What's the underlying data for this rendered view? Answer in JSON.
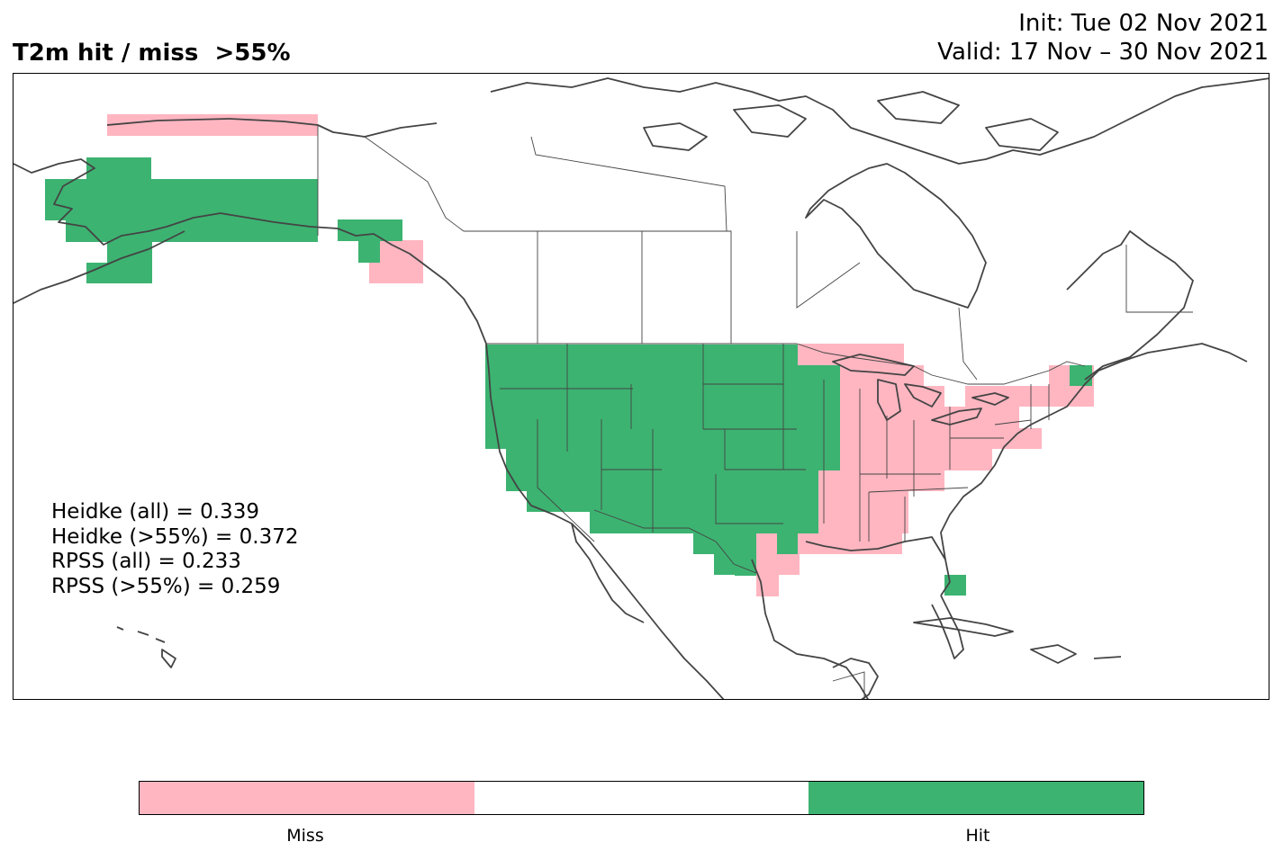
{
  "title": {
    "left": "T2m hit / miss  >55%",
    "init": "Init: Tue 02 Nov 2021",
    "valid": "Valid: 17 Nov – 30 Nov 2021"
  },
  "stats": {
    "heidke_all": "Heidke (all) = 0.339",
    "heidke_55": "Heidke (>55%) = 0.372",
    "rpss_all": "RPSS (all) = 0.233",
    "rpss_55": "RPSS (>55%) = 0.259"
  },
  "legend": {
    "miss_label": "Miss",
    "hit_label": "Hit",
    "colors": {
      "miss": "#ffb6c1",
      "neutral": "#ffffff",
      "hit": "#3cb371"
    }
  },
  "map": {
    "region": "North America",
    "categories": [
      "miss",
      "hit"
    ],
    "coastline_color": "#444444"
  }
}
